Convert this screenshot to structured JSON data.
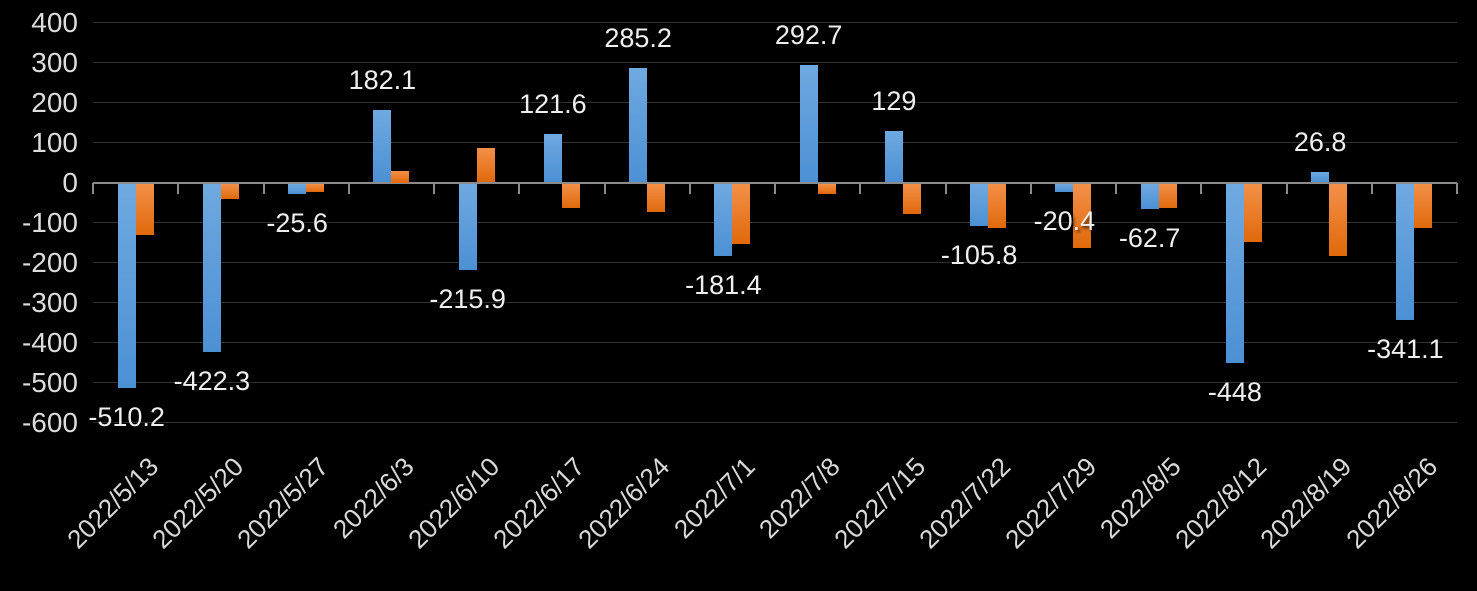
{
  "chart_data": {
    "type": "bar",
    "title": "",
    "categories": [
      "2022/5/13",
      "2022/5/20",
      "2022/5/27",
      "2022/6/3",
      "2022/6/10",
      "2022/6/17",
      "2022/6/24",
      "2022/7/1",
      "2022/7/8",
      "2022/7/15",
      "2022/7/22",
      "2022/7/29",
      "2022/8/5",
      "2022/8/12",
      "2022/8/19",
      "2022/8/26"
    ],
    "series": [
      {
        "name": "blue",
        "color": "#5B9BD5",
        "values": [
          -510.2,
          -422.3,
          -25.6,
          182.1,
          -215.9,
          121.6,
          285.2,
          -181.4,
          292.7,
          129,
          -105.8,
          -20.4,
          -62.7,
          -448,
          26.8,
          -341.1
        ],
        "data_labels": [
          "-510.2",
          "-422.3",
          "-25.6",
          "182.1",
          "-215.9",
          "121.6",
          "285.2",
          "-181.4",
          "292.7",
          "129",
          "-105.8",
          "-20.4",
          "-62.7",
          "-448",
          "26.8",
          "-341.1"
        ]
      },
      {
        "name": "orange",
        "color": "#ED7D31",
        "values": [
          -128,
          -38,
          -22,
          30,
          87,
          -60,
          -72,
          -152,
          -25,
          -75,
          -111,
          -160,
          -60,
          -145,
          -182,
          -112
        ],
        "data_labels": null
      }
    ],
    "ylim": [
      -600,
      400
    ],
    "y_tick_step": 100,
    "y_tick_labels": [
      "400",
      "300",
      "200",
      "100",
      "0",
      "-100",
      "-200",
      "-300",
      "-400",
      "-500",
      "-600"
    ],
    "grid": true,
    "legend": "none",
    "background": "#000000",
    "x_label_rotation": -45,
    "xlabel": "",
    "ylabel": ""
  }
}
